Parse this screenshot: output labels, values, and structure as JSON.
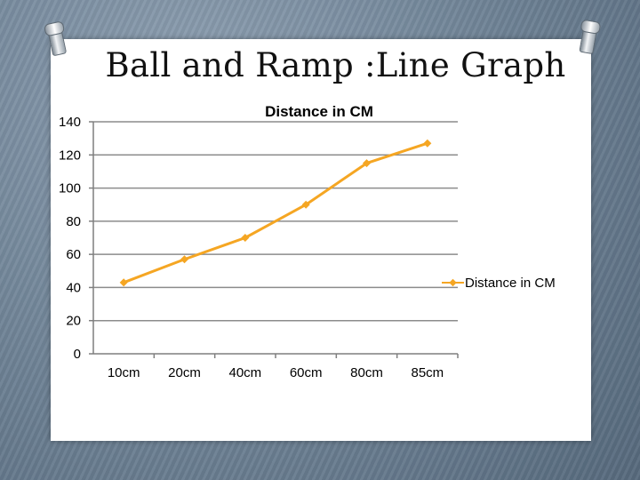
{
  "slide": {
    "title": "Ball and Ramp :Line Graph"
  },
  "chart_data": {
    "type": "line",
    "title": "Distance in CM",
    "categories": [
      "10cm",
      "20cm",
      "40cm",
      "60cm",
      "80cm",
      "85cm"
    ],
    "series": [
      {
        "name": "Distance in CM",
        "values": [
          43,
          57,
          70,
          90,
          115,
          127
        ],
        "color": "#f5a623"
      }
    ],
    "ylim": [
      0,
      140
    ],
    "yticks": [
      "0",
      "20",
      "40",
      "60",
      "80",
      "100",
      "120",
      "140"
    ],
    "xlabel": "",
    "ylabel": "",
    "grid": true,
    "legend": "right"
  }
}
